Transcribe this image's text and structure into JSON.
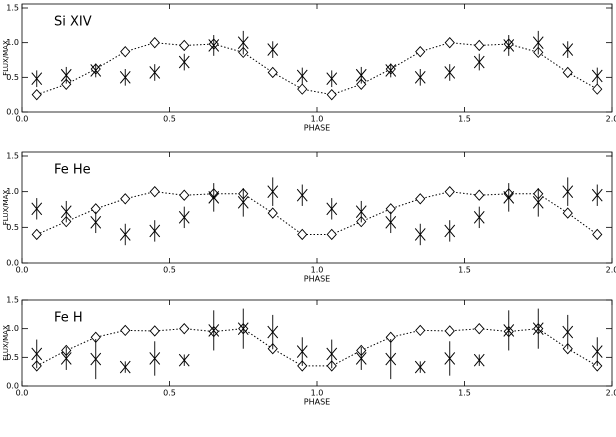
{
  "chart_data": [
    {
      "type": "scatter",
      "title": "Si XIV",
      "xlabel": "PHASE",
      "ylabel": "FLUX/MAX",
      "x": [
        0.05,
        0.15,
        0.25,
        0.35,
        0.45,
        0.55,
        0.65,
        0.75,
        0.85,
        0.95,
        1.05,
        1.15,
        1.25,
        1.35,
        1.45,
        1.55,
        1.65,
        1.75,
        1.85,
        1.95
      ],
      "series": [
        {
          "marker": "diamond",
          "line": "dotted",
          "color": "#000000",
          "values": [
            0.25,
            0.4,
            0.62,
            0.87,
            1.0,
            0.96,
            0.98,
            0.86,
            0.57,
            0.33,
            0.25,
            0.4,
            0.62,
            0.87,
            1.0,
            0.96,
            0.98,
            0.86,
            0.57,
            0.33
          ]
        },
        {
          "marker": "x",
          "color": "#000000",
          "values": [
            0.48,
            0.53,
            0.6,
            0.5,
            0.57,
            0.72,
            0.96,
            1.0,
            0.9,
            0.52,
            0.48,
            0.53,
            0.6,
            0.5,
            0.57,
            0.72,
            0.96,
            1.0,
            0.9,
            0.52
          ],
          "errors": [
            0.12,
            0.12,
            0.1,
            0.12,
            0.12,
            0.12,
            0.15,
            0.17,
            0.12,
            0.12,
            0.12,
            0.12,
            0.1,
            0.12,
            0.12,
            0.12,
            0.15,
            0.17,
            0.12,
            0.12
          ]
        }
      ],
      "xlim": [
        0,
        2
      ],
      "ylim": [
        0,
        1.5
      ],
      "xticks": [
        {
          "value": 0,
          "label": "0.0"
        },
        0.5,
        {
          "value": 1,
          "label": "1.0"
        },
        1.5,
        {
          "value": 2,
          "label": "2.0"
        }
      ],
      "yticks": [
        {
          "value": 0,
          "label": "0.0"
        },
        0.5,
        {
          "value": 1,
          "label": "1.0"
        },
        1.5
      ]
    },
    {
      "type": "scatter",
      "title": "Fe He",
      "xlabel": "PHASE",
      "ylabel": "FLUX/MAX",
      "x": [
        0.05,
        0.15,
        0.25,
        0.35,
        0.45,
        0.55,
        0.65,
        0.75,
        0.85,
        0.95,
        1.05,
        1.15,
        1.25,
        1.35,
        1.45,
        1.55,
        1.65,
        1.75,
        1.85,
        1.95
      ],
      "series": [
        {
          "marker": "diamond",
          "line": "dotted",
          "color": "#000000",
          "values": [
            0.4,
            0.58,
            0.76,
            0.9,
            1.0,
            0.95,
            0.97,
            0.97,
            0.7,
            0.4,
            0.4,
            0.58,
            0.76,
            0.9,
            1.0,
            0.95,
            0.97,
            0.97,
            0.7,
            0.4
          ]
        },
        {
          "marker": "x",
          "color": "#000000",
          "values": [
            0.76,
            0.72,
            0.57,
            0.4,
            0.45,
            0.64,
            0.92,
            0.85,
            1.0,
            0.95,
            0.76,
            0.72,
            0.57,
            0.4,
            0.45,
            0.64,
            0.92,
            0.85,
            1.0,
            0.95
          ],
          "errors": [
            0.15,
            0.15,
            0.15,
            0.15,
            0.15,
            0.15,
            0.2,
            0.2,
            0.2,
            0.15,
            0.15,
            0.15,
            0.15,
            0.15,
            0.15,
            0.15,
            0.2,
            0.2,
            0.2,
            0.15
          ]
        }
      ],
      "xlim": [
        0,
        2
      ],
      "ylim": [
        0,
        1.5
      ],
      "xticks": [
        {
          "value": 0,
          "label": "0.0"
        },
        0.5,
        {
          "value": 1,
          "label": "1.0"
        },
        1.5,
        {
          "value": 2,
          "label": "2.0"
        }
      ],
      "yticks": [
        {
          "value": 0,
          "label": "0.0"
        },
        0.5,
        {
          "value": 1,
          "label": "1.0"
        },
        1.5
      ]
    },
    {
      "type": "scatter",
      "title": "Fe H",
      "xlabel": "PHASE",
      "ylabel": "FLUX/MAX",
      "x": [
        0.05,
        0.15,
        0.25,
        0.35,
        0.45,
        0.55,
        0.65,
        0.75,
        0.85,
        0.95,
        1.05,
        1.15,
        1.25,
        1.35,
        1.45,
        1.55,
        1.65,
        1.75,
        1.85,
        1.95
      ],
      "series": [
        {
          "marker": "diamond",
          "line": "dotted",
          "color": "#000000",
          "values": [
            0.35,
            0.62,
            0.85,
            0.97,
            0.96,
            1.0,
            0.95,
            1.0,
            0.65,
            0.35,
            0.35,
            0.62,
            0.85,
            0.97,
            0.96,
            1.0,
            0.95,
            1.0,
            0.65,
            0.35
          ]
        },
        {
          "marker": "x",
          "color": "#000000",
          "values": [
            0.56,
            0.48,
            0.47,
            0.33,
            0.48,
            0.45,
            0.97,
            1.0,
            0.94,
            0.6,
            0.56,
            0.48,
            0.47,
            0.33,
            0.48,
            0.45,
            0.97,
            1.0,
            0.94,
            0.6
          ],
          "errors": [
            0.25,
            0.2,
            0.35,
            0.1,
            0.3,
            0.1,
            0.35,
            0.35,
            0.3,
            0.25,
            0.25,
            0.2,
            0.35,
            0.1,
            0.3,
            0.1,
            0.35,
            0.35,
            0.3,
            0.25
          ]
        }
      ],
      "xlim": [
        0,
        2
      ],
      "ylim": [
        0,
        1.5
      ],
      "xticks": [
        {
          "value": 0,
          "label": "0.0"
        },
        0.5,
        {
          "value": 1,
          "label": "1.0"
        },
        1.5,
        {
          "value": 2,
          "label": "2.0"
        }
      ],
      "yticks": [
        {
          "value": 0,
          "label": "0.0"
        },
        0.5,
        {
          "value": 1,
          "label": "1.0"
        },
        1.5
      ]
    }
  ]
}
